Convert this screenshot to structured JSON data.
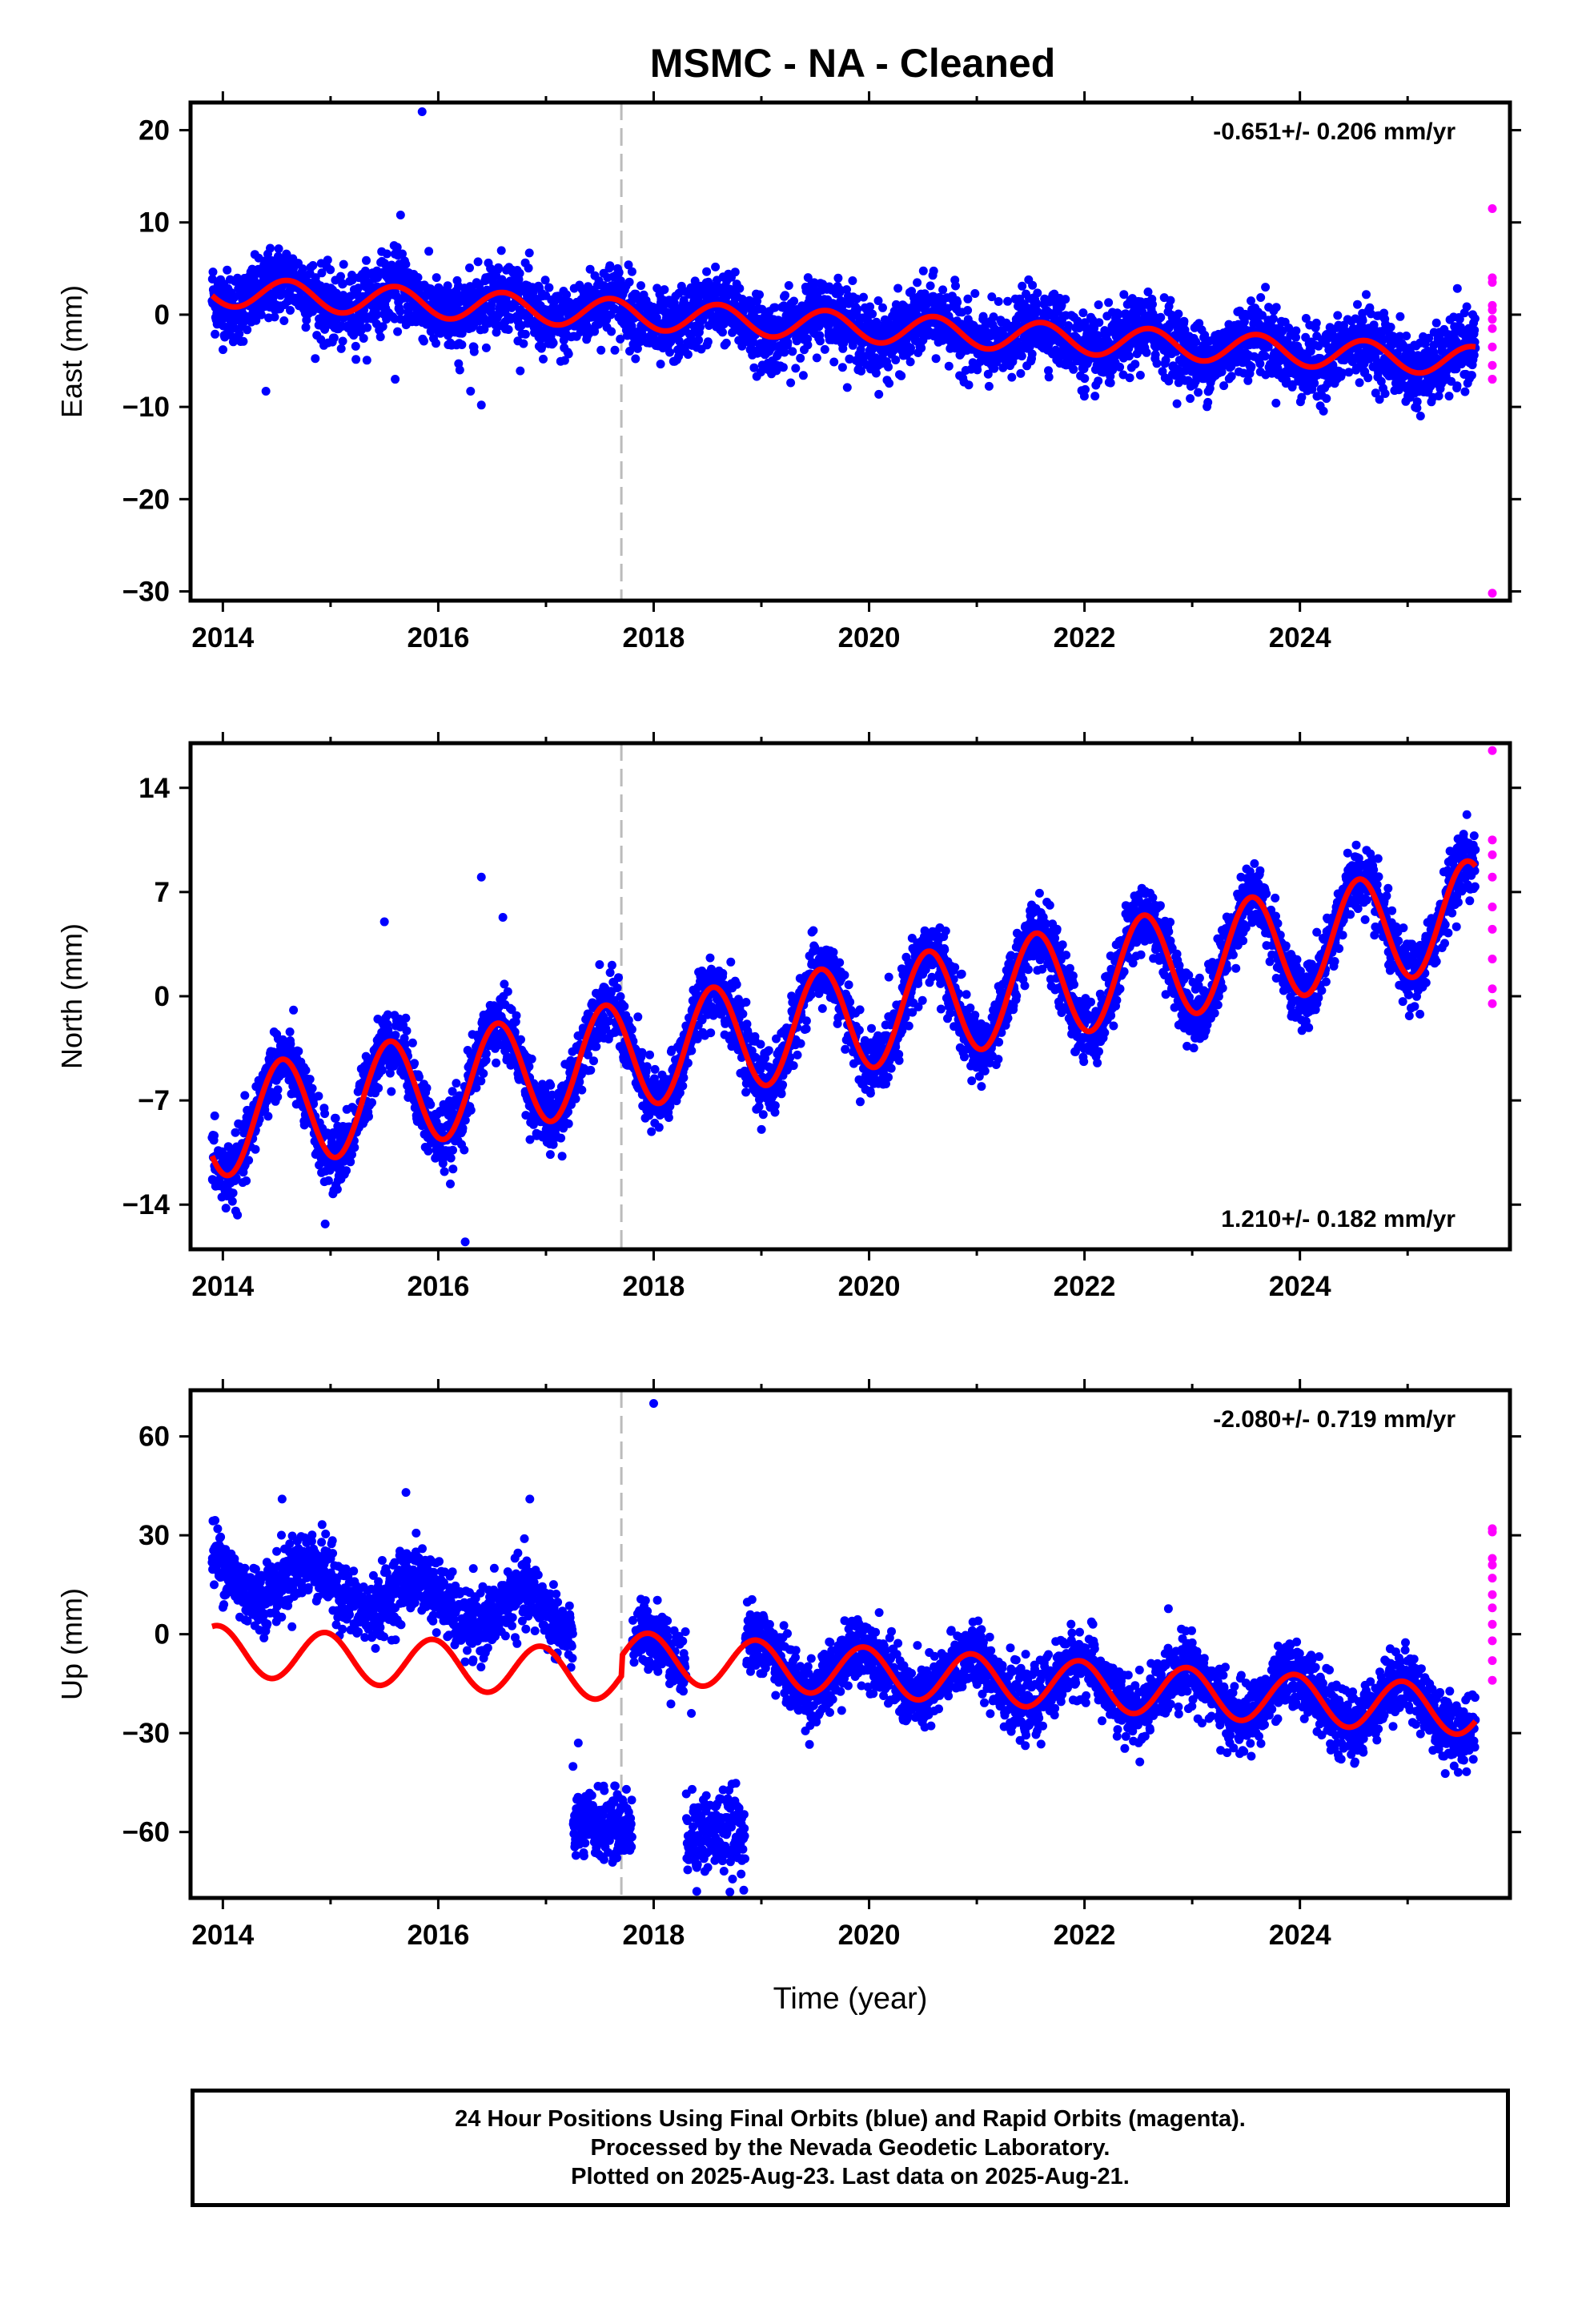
{
  "title": "MSMC  - NA - Cleaned",
  "xlabel": "Time (year)",
  "colors": {
    "final": "#0000ff",
    "rapid": "#ff00ff",
    "model": "#ff0000",
    "event_line": "#bbbbbb"
  },
  "footer": {
    "line1": "24 Hour Positions Using Final Orbits (blue) and Rapid Orbits (magenta).",
    "line2": "Processed by the Nevada Geodetic Laboratory.",
    "line3": "Plotted on 2025-Aug-23. Last data on 2025-Aug-21."
  },
  "chart_data": [
    {
      "type": "scatter",
      "component": "east",
      "ylabel": "East (mm)",
      "rate_text": "-0.651+/- 0.206 mm/yr",
      "rate_position": "top-right",
      "xlim": [
        2013.7,
        2025.95
      ],
      "ylim": [
        -31,
        23
      ],
      "xticks": [
        2014,
        2016,
        2018,
        2020,
        2022,
        2024
      ],
      "yticks": [
        20,
        10,
        0,
        -10,
        -20,
        -30
      ],
      "event_line_x": 2017.7,
      "data_start": 2013.9,
      "data_end": 2025.63,
      "trend": {
        "offset": 2.5,
        "rate": -0.651,
        "annual_amp": 1.6,
        "annual_phase": 2014.6,
        "noise": 1.9
      },
      "outliers": [
        [
          2015.85,
          22
        ],
        [
          2015.65,
          10.8
        ],
        [
          2014.4,
          -8.3
        ],
        [
          2016.3,
          -8.3
        ],
        [
          2016.4,
          -9.8
        ],
        [
          2015.6,
          -7.0
        ],
        [
          2016.2,
          -6.0
        ]
      ],
      "rapid_points": [
        11.5,
        4.0,
        3.5,
        1.0,
        0.5,
        -0.5,
        -1.5,
        -3.5,
        -5.5,
        -7.0,
        -30.2
      ],
      "gaps": []
    },
    {
      "type": "scatter",
      "component": "north",
      "ylabel": "North (mm)",
      "rate_text": "1.210+/- 0.182 mm/yr",
      "rate_position": "bottom-right",
      "xlim": [
        2013.7,
        2025.95
      ],
      "ylim": [
        -17,
        17
      ],
      "xticks": [
        2014,
        2016,
        2018,
        2020,
        2022,
        2024
      ],
      "yticks": [
        14,
        7,
        0,
        -7,
        -14
      ],
      "event_line_x": 2017.7,
      "data_start": 2013.9,
      "data_end": 2025.63,
      "trend": {
        "offset": -8.5,
        "rate": 1.21,
        "annual_amp": 3.6,
        "annual_phase": 2014.55,
        "noise": 1.1
      },
      "outliers": [
        [
          2014.95,
          -15.3
        ],
        [
          2016.25,
          -16.5
        ],
        [
          2016.4,
          8.0
        ],
        [
          2016.6,
          5.3
        ],
        [
          2015.5,
          5.0
        ],
        [
          2025.55,
          12.2
        ]
      ],
      "rapid_points": [
        16.5,
        10.5,
        9.5,
        8.0,
        6.0,
        4.5,
        2.5,
        0.5,
        -0.5
      ],
      "gaps": []
    },
    {
      "type": "scatter",
      "component": "up",
      "ylabel": "Up (mm)",
      "rate_text": "-2.080+/- 0.719 mm/yr",
      "rate_position": "top-right",
      "xlim": [
        2013.7,
        2025.95
      ],
      "ylim": [
        -80,
        74
      ],
      "xticks": [
        2014,
        2016,
        2018,
        2020,
        2022,
        2024
      ],
      "yticks": [
        60,
        30,
        0,
        -30,
        -60
      ],
      "event_line_x": 2017.7,
      "data_start": 2013.9,
      "data_end": 2025.63,
      "trend": {
        "offset": 1.0,
        "rate": -2.08,
        "annual_amp": 7.5,
        "annual_phase": 2014.95,
        "noise": 5.0
      },
      "outliers": [
        [
          2018.0,
          70
        ],
        [
          2015.7,
          43
        ],
        [
          2016.85,
          41
        ],
        [
          2014.55,
          41
        ],
        [
          2017.3,
          -33
        ],
        [
          2018.35,
          -24
        ],
        [
          2018.4,
          -78
        ]
      ],
      "rapid_points": [
        32,
        31,
        23,
        21,
        17,
        12,
        8,
        3,
        -2,
        -8,
        -14
      ],
      "gaps": [
        {
          "x0": 2017.25,
          "x1": 2017.8,
          "level": -58,
          "spread": 5
        },
        {
          "x0": 2018.3,
          "x1": 2018.85,
          "level": -60,
          "spread": 6
        }
      ]
    }
  ]
}
